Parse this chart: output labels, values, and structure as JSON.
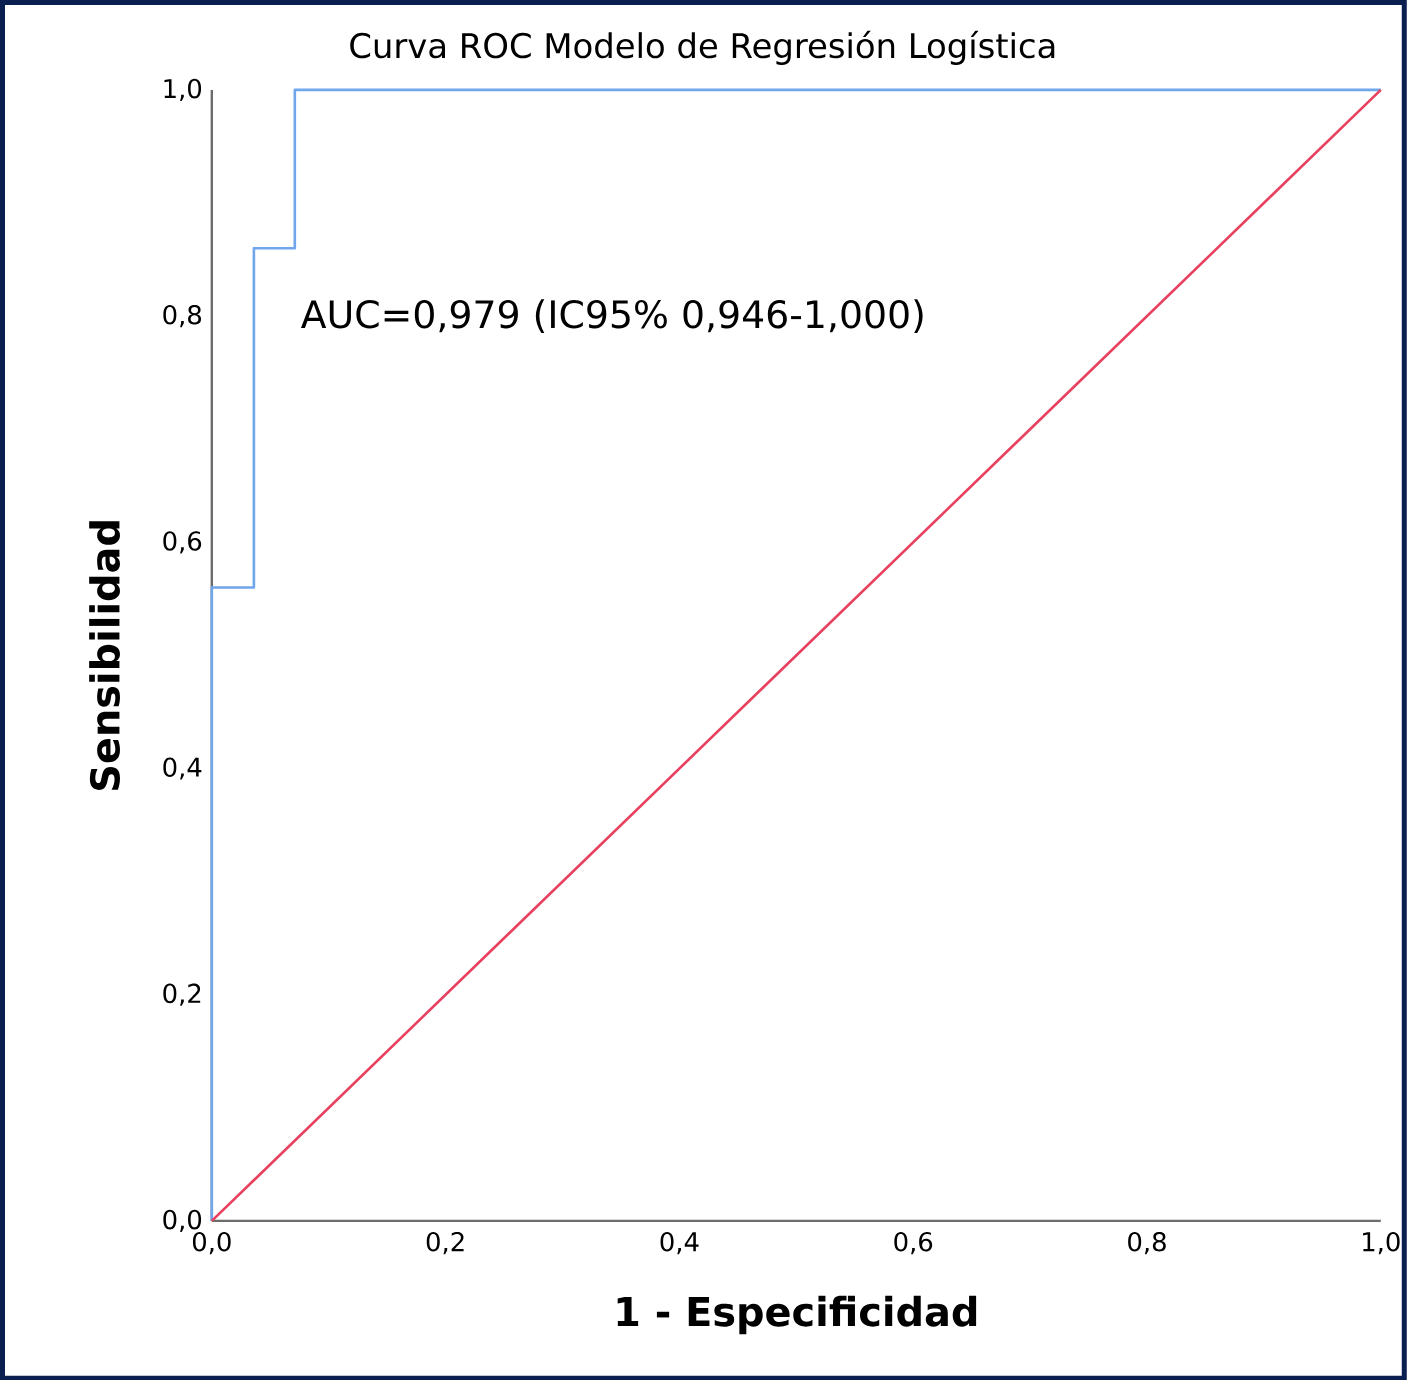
{
  "chart_data": {
    "type": "line",
    "title": "Curva ROC Modelo de Regresión Logística",
    "xlabel": "1 - Especificidad",
    "ylabel": "Sensibilidad",
    "series": [
      {
        "color": "#6fa6ec",
        "x": [
          0,
          0,
          0.036,
          0.036,
          0.071,
          0.071,
          1
        ],
        "values": [
          0,
          0.56,
          0.56,
          0.86,
          0.86,
          1,
          1
        ]
      },
      {
        "color": "#e8415f",
        "x": [
          0,
          1
        ],
        "values": [
          0,
          1
        ]
      }
    ],
    "xlim": [
      0,
      1
    ],
    "ylim": [
      0,
      1
    ],
    "xticks": [
      {
        "value": 0,
        "label": "0,0"
      },
      {
        "value": 0.2,
        "label": "0,2"
      },
      {
        "value": 0.4,
        "label": "0,4"
      },
      {
        "value": 0.6,
        "label": "0,6"
      },
      {
        "value": 0.8,
        "label": "0,8"
      },
      {
        "value": 1,
        "label": "1,0"
      }
    ],
    "yticks": [
      {
        "value": 0,
        "label": "0,0"
      },
      {
        "value": 0.2,
        "label": "0,2"
      },
      {
        "value": 0.4,
        "label": "0,4"
      },
      {
        "value": 0.6,
        "label": "0,6"
      },
      {
        "value": 0.8,
        "label": "0,8"
      },
      {
        "value": 1,
        "label": "1,0"
      }
    ],
    "annotations": [
      "AUC=0,979 (IC95% 0,946-1,000)"
    ],
    "grid": false,
    "marker": "none",
    "line_style": "solid"
  }
}
